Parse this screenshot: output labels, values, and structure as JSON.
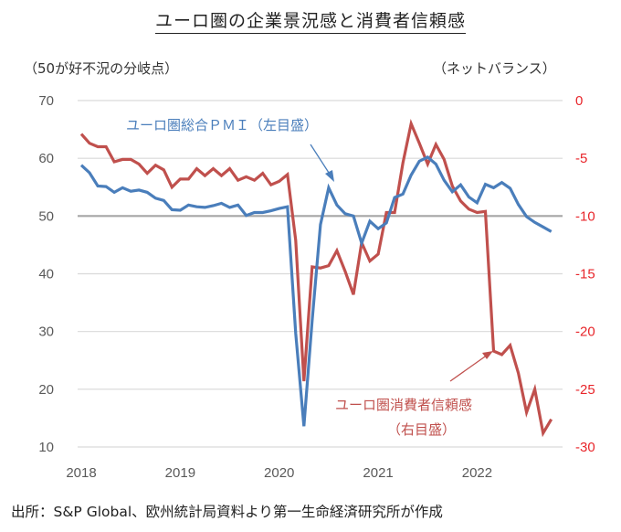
{
  "chart_data": {
    "type": "line",
    "title": "ユーロ圏の企業景況感と消費者信頼感",
    "left_axis_note": "（50が好不況の分岐点）",
    "right_axis_note": "（ネットバランス）",
    "source": "出所：S&P Global、欧州統計局資料より第一生命経済研究所が作成",
    "x_start": "2018-01",
    "x_tick_labels": [
      "2018",
      "2019",
      "2020",
      "2021",
      "2022"
    ],
    "left_ylim": [
      10,
      70
    ],
    "left_ticks": [
      "70",
      "60",
      "50",
      "40",
      "30",
      "20",
      "10"
    ],
    "right_ylim": [
      -30,
      0
    ],
    "right_ticks": [
      "0",
      "-5",
      "-10",
      "-15",
      "-20",
      "-25",
      "-30"
    ],
    "reference_line_left": 50,
    "grid": true,
    "colors": {
      "pmi": "#4a7ebb",
      "consumer": "#c0504d",
      "right_tick": "#e8262b",
      "zero_tick": "#595959",
      "reference": "#a6a6a6",
      "grid": "#d9d9d9"
    },
    "series": [
      {
        "name": "ユーロ圏総合ＰＭＩ（左目盛）",
        "label_line1": "ユーロ圏総合ＰＭＩ（左目盛）",
        "axis": "left",
        "values": [
          58.8,
          57.5,
          55.2,
          55.1,
          54.1,
          54.9,
          54.3,
          54.5,
          54.1,
          53.1,
          52.7,
          51.1,
          51.0,
          51.9,
          51.6,
          51.5,
          51.8,
          52.2,
          51.5,
          51.9,
          50.1,
          50.6,
          50.6,
          50.9,
          51.3,
          51.6,
          29.7,
          13.6,
          31.9,
          48.5,
          54.9,
          51.9,
          50.4,
          50.0,
          45.3,
          49.1,
          47.8,
          48.8,
          53.2,
          53.8,
          57.1,
          59.5,
          60.2,
          59.0,
          56.2,
          54.2,
          55.4,
          53.3,
          52.3,
          55.5,
          54.9,
          55.8,
          54.8,
          52.0,
          49.9,
          48.9,
          48.1,
          47.3
        ]
      },
      {
        "name": "ユーロ圏消費者信頼感（右目盛）",
        "label_line1": "ユーロ圏消費者信頼感",
        "label_line2": "（右目盛）",
        "axis": "right",
        "values": [
          -2.9,
          -3.7,
          -4.0,
          -4.0,
          -5.3,
          -5.1,
          -5.1,
          -5.5,
          -6.3,
          -5.6,
          -6.0,
          -7.5,
          -6.8,
          -6.8,
          -5.9,
          -6.5,
          -5.9,
          -6.5,
          -5.9,
          -6.9,
          -6.6,
          -6.9,
          -6.3,
          -7.3,
          -7.0,
          -6.4,
          -12.1,
          -24.3,
          -14.4,
          -14.5,
          -14.3,
          -13.0,
          -14.8,
          -16.8,
          -12.3,
          -13.9,
          -13.3,
          -9.7,
          -9.7,
          -5.4,
          -2.0,
          -3.7,
          -5.5,
          -3.8,
          -5.1,
          -7.4,
          -8.7,
          -9.4,
          -9.7,
          -9.6,
          -21.7,
          -22.0,
          -21.2,
          -23.6,
          -27.0,
          -25.0,
          -28.8,
          -27.6
        ]
      }
    ]
  }
}
